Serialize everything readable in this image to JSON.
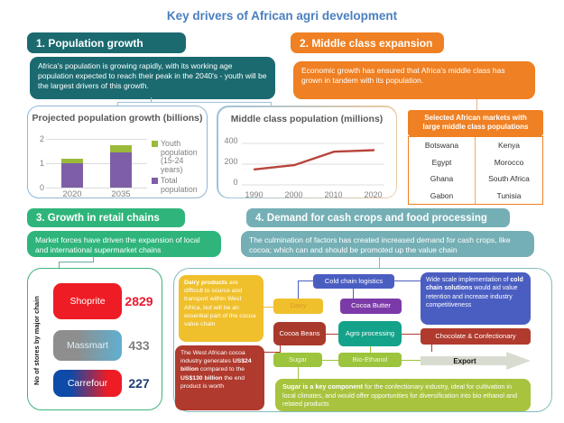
{
  "title": "Key drivers of African agri development",
  "colors": {
    "title": "#4a7fc0",
    "section1": "#1b6a70",
    "section2": "#ef8023",
    "section3": "#2fb57c",
    "section4": "#74afb5"
  },
  "sections": {
    "s1": {
      "header": "1. Population growth",
      "body": "Africa's population is growing rapidly, with its working age population expected to reach their peak in the 2040's - youth will be the largest drivers of this growth."
    },
    "s2": {
      "header": "2. Middle class expansion",
      "body": "Economic growth has ensured that Africa's middle class has grown in tandem with its population."
    },
    "s3": {
      "header": "3. Growth in retail chains",
      "body": "Market forces have driven the expansion of local and international supermarket chains"
    },
    "s4": {
      "header": "4. Demand for cash crops and food processing",
      "body": "The culmination of factors has created increased demand for cash crops, like cocoa; which can and should be promoted up the value chain"
    }
  },
  "chart_data": [
    {
      "type": "bar",
      "title": "Projected population growth (billions)",
      "categories": [
        "2020",
        "2035"
      ],
      "series": [
        {
          "name": "Youth population (15-24 years)",
          "values": [
            0.2,
            0.3
          ],
          "color": "#9aba3a"
        },
        {
          "name": "Total population",
          "values": [
            1.0,
            1.45
          ],
          "color": "#7e5fa7"
        }
      ],
      "stacked": true,
      "ylim": [
        0,
        2
      ],
      "yticks": [
        0,
        1,
        2
      ],
      "legend_position": "right",
      "grid": true
    },
    {
      "type": "line",
      "title": "Middle class population (millions)",
      "x": [
        1990,
        2000,
        2010,
        2020
      ],
      "values": [
        150,
        190,
        320,
        335
      ],
      "ylim": [
        0,
        400
      ],
      "yticks": [
        0,
        200,
        400
      ],
      "color": "#b8443a",
      "grid": true
    },
    {
      "type": "bar",
      "title": "No of stores by major chain",
      "categories": [
        "Shoprite",
        "Massmart",
        "Carrefour"
      ],
      "values": [
        2829,
        433,
        227
      ]
    }
  ],
  "markets": {
    "header": "Selected African markets with large middle class populations",
    "rows": [
      [
        "Botswana",
        "Kenya"
      ],
      [
        "Egypt",
        "Morocco"
      ],
      [
        "Ghana",
        "South Africa"
      ],
      [
        "Gabon",
        "Tunisia"
      ]
    ]
  },
  "flow": {
    "nodes": {
      "cold_chain": "Cold chain logistics",
      "dairy": "Dairy",
      "cocoa_butter": "Cocoa Butter",
      "cocoa_beans": "Cocoa Beans",
      "agro": "Agro processing",
      "sugar": "Sugar",
      "bio_ethanol": "Bio-Ethanol",
      "chocolate": "Chocolate & Confectionary",
      "export": "Export"
    },
    "notes": {
      "dairy": {
        "bold": "Dairy products",
        "rest": " are difficult to source and transport within West Africa, but will be an essential part of the cocoa value chain"
      },
      "cold_chain": {
        "p1": "Wide scale implementation of ",
        "bold": "cold chain solutions",
        "p2": " would aid value retention and increase industry competitiveness"
      },
      "cocoa": {
        "p1": "The West African cocoa industry generates ",
        "b1": "US$24 billion",
        "p2": " compared to the ",
        "b2": "US$130 billion",
        "p3": " the end product is worth"
      },
      "sugar": {
        "bold": "Sugar is a key component",
        "rest": " for the confectionary industry, ideal for cultivation in local climates, and would offer opportunities for diversification into bio ethanol and related products"
      }
    }
  }
}
